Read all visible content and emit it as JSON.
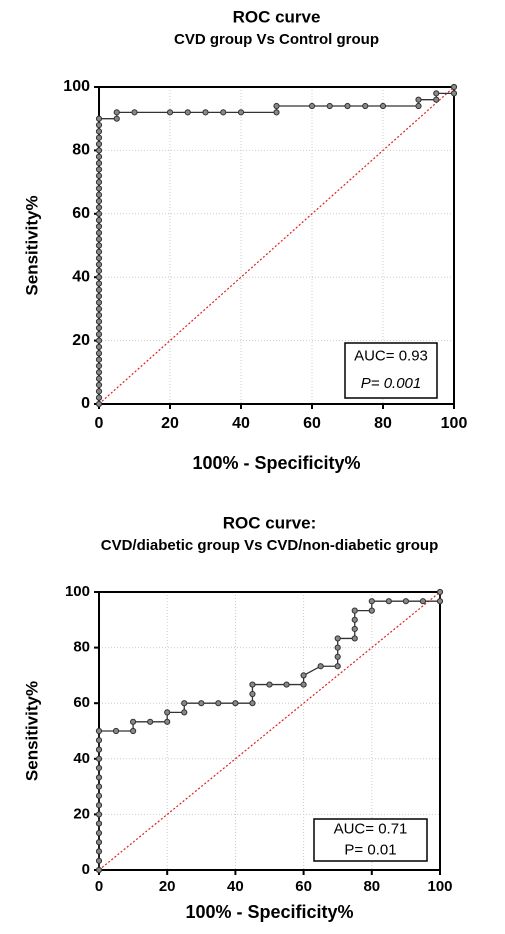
{
  "chart_data": [
    {
      "type": "line",
      "title": "ROC curve",
      "subtitle": "CVD group Vs Control group",
      "x_label": "100% - Specificity%",
      "y_label": "Sensitivity%",
      "x": [
        0,
        0,
        0,
        0,
        0,
        0,
        0,
        0,
        0,
        0,
        0,
        0,
        0,
        0,
        0,
        0,
        0,
        0,
        0,
        0,
        0,
        0,
        0,
        0,
        0,
        0,
        0,
        0,
        0,
        0,
        0,
        0,
        0,
        0,
        0,
        0,
        0,
        0,
        0,
        0,
        0,
        0,
        0,
        0,
        0,
        0,
        5,
        5,
        10,
        20,
        25,
        30,
        35,
        40,
        50,
        50,
        60,
        65,
        70,
        75,
        80,
        90,
        90,
        95,
        95,
        100,
        100
      ],
      "values": [
        0,
        2,
        4,
        6,
        8,
        10,
        12,
        14,
        16,
        18,
        20,
        22,
        24,
        26,
        28,
        30,
        32,
        34,
        36,
        38,
        40,
        42,
        44,
        46,
        48,
        50,
        52,
        54,
        56,
        58,
        60,
        62,
        64,
        66,
        68,
        70,
        72,
        74,
        76,
        78,
        80,
        82,
        84,
        86,
        88,
        90,
        90,
        92,
        92,
        92,
        92,
        92,
        92,
        92,
        92,
        94,
        94,
        94,
        94,
        94,
        94,
        94,
        96,
        96,
        98,
        98,
        100
      ],
      "color": "#333333",
      "reference_line": {
        "x": [
          0,
          100
        ],
        "y": [
          0,
          100
        ],
        "color": "#e02020"
      },
      "xlim": [
        0,
        100
      ],
      "ylim": [
        0,
        100
      ],
      "xticks": [
        0,
        20,
        40,
        60,
        80,
        100
      ],
      "yticks": [
        0,
        20,
        40,
        60,
        80,
        100
      ],
      "grid": true,
      "annotations": [
        "AUC= 0.93",
        "P= 0.001"
      ]
    },
    {
      "type": "line",
      "title": "ROC curve:",
      "subtitle": "CVD/diabetic group Vs CVD/non-diabetic group",
      "x_label": "100% - Specificity%",
      "y_label": "Sensitivity%",
      "x": [
        0,
        0,
        0,
        0,
        0,
        0,
        0,
        0,
        0,
        0,
        0,
        0,
        0,
        0,
        0,
        0,
        5,
        10,
        10,
        15,
        20,
        20,
        25,
        25,
        30,
        35,
        40,
        45,
        45,
        45,
        50,
        55,
        60,
        60,
        65,
        70,
        70,
        70,
        70,
        75,
        75,
        75,
        75,
        80,
        80,
        85,
        90,
        95,
        100,
        100
      ],
      "values": [
        0,
        3.3,
        6.7,
        10,
        13.3,
        16.7,
        20,
        23.3,
        26.7,
        30,
        33.3,
        36.7,
        40,
        43.3,
        46.7,
        50,
        50,
        50,
        53.3,
        53.3,
        53.3,
        56.7,
        56.7,
        60,
        60,
        60,
        60,
        60,
        63.3,
        66.7,
        66.7,
        66.7,
        66.7,
        70,
        73.3,
        73.3,
        76.7,
        80,
        83.3,
        83.3,
        86.7,
        90,
        93.3,
        93.3,
        96.7,
        96.7,
        96.7,
        96.7,
        96.7,
        100
      ],
      "color": "#333333",
      "reference_line": {
        "x": [
          0,
          100
        ],
        "y": [
          0,
          100
        ],
        "color": "#e02020"
      },
      "xlim": [
        0,
        100
      ],
      "ylim": [
        0,
        100
      ],
      "xticks": [
        0,
        20,
        40,
        60,
        80,
        100
      ],
      "yticks": [
        0,
        20,
        40,
        60,
        80,
        100
      ],
      "grid": true,
      "annotations": [
        "AUC= 0.71",
        "P= 0.01"
      ]
    }
  ]
}
